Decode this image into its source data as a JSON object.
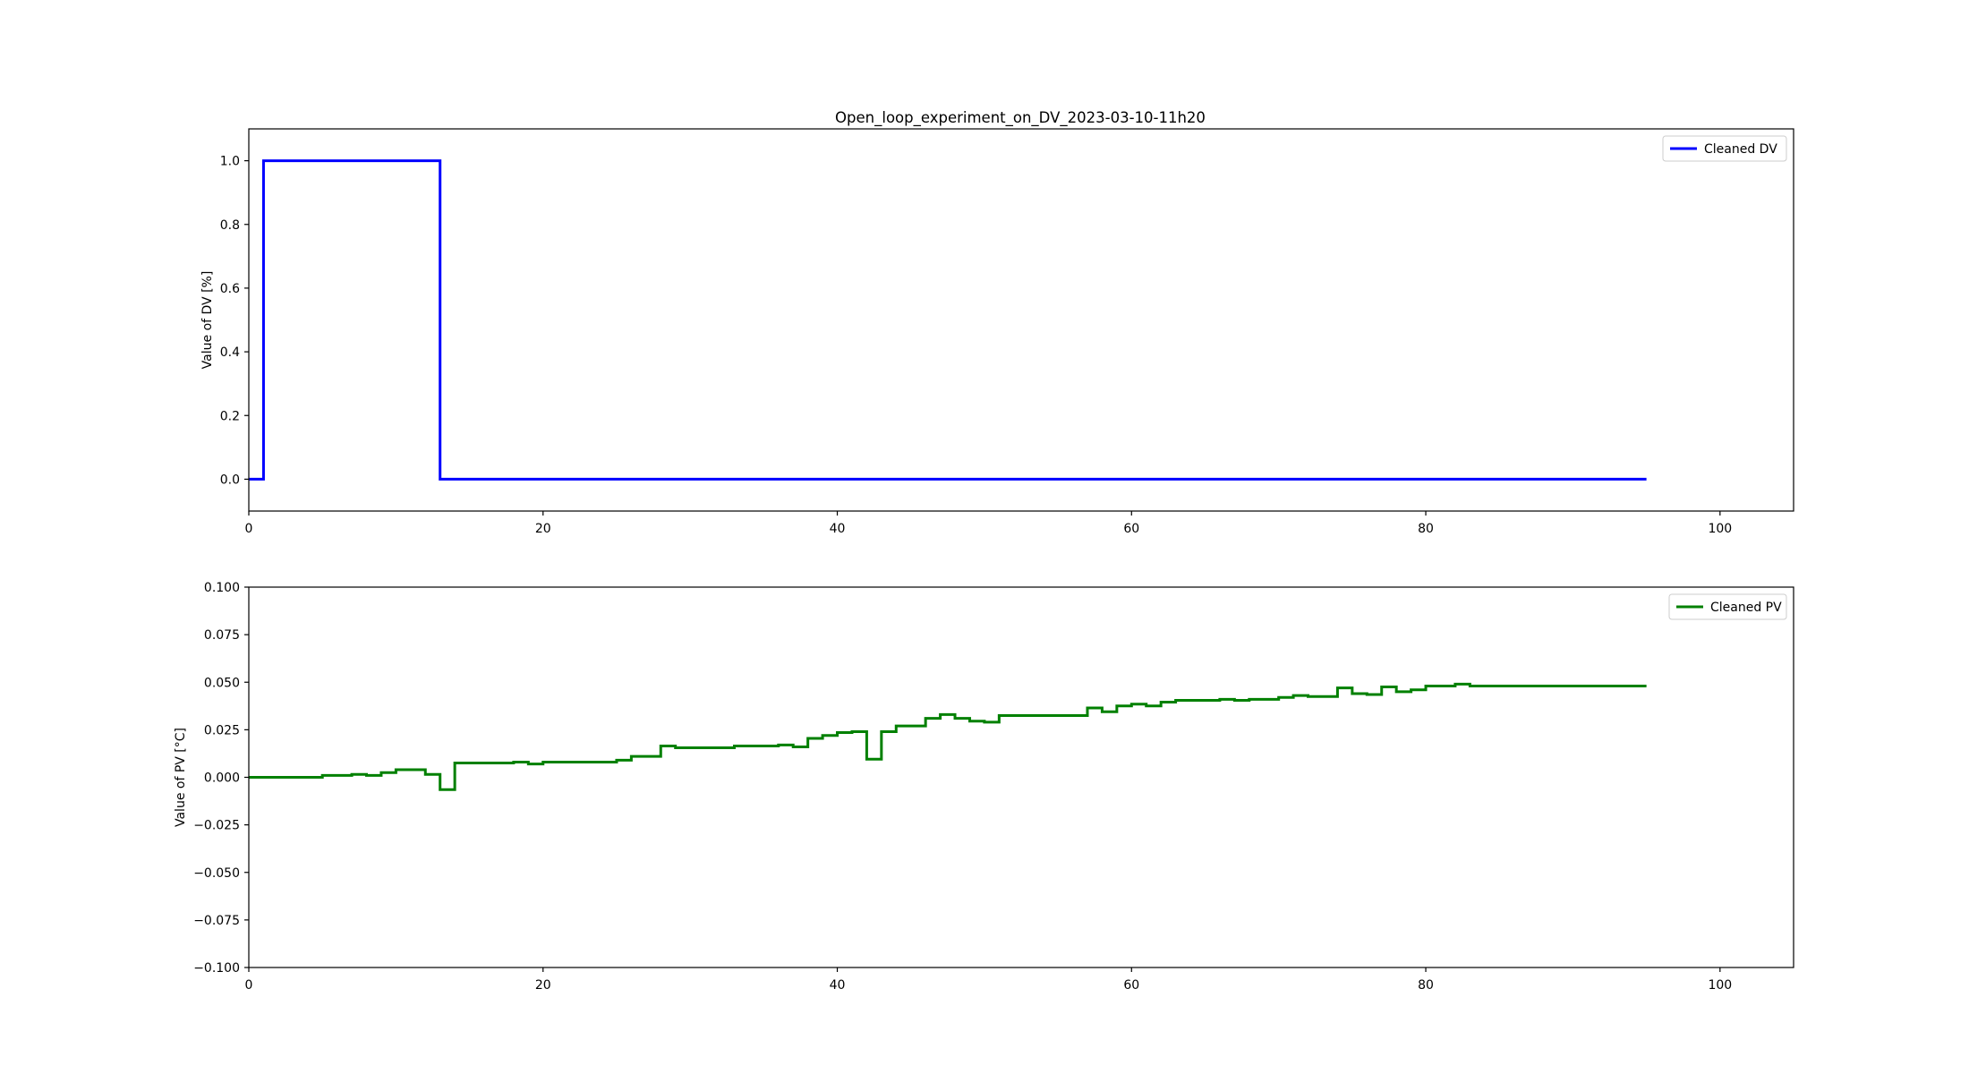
{
  "figure": {
    "title": "Open_loop_experiment_on_DV_2023-03-10-11h20"
  },
  "chart_data": [
    {
      "type": "line",
      "step": "post",
      "title": "Open_loop_experiment_on_DV_2023-03-10-11h20",
      "xlabel": "",
      "ylabel": "Value of DV [%]",
      "xlim": [
        0,
        105
      ],
      "ylim": [
        -0.1,
        1.1
      ],
      "xticks": [
        0,
        20,
        40,
        60,
        80,
        100
      ],
      "yticks": [
        0.0,
        0.2,
        0.4,
        0.6,
        0.8,
        1.0
      ],
      "xtick_labels": [
        "0",
        "20",
        "40",
        "60",
        "80",
        "100"
      ],
      "ytick_labels": [
        "0.0",
        "0.2",
        "0.4",
        "0.6",
        "0.8",
        "1.0"
      ],
      "grid": false,
      "legend": "top-right",
      "series": [
        {
          "name": "Cleaned DV",
          "color": "#0000ff",
          "x": [
            0,
            1,
            13,
            95
          ],
          "y": [
            0,
            1,
            0,
            0
          ]
        }
      ]
    },
    {
      "type": "line",
      "step": "post",
      "title": "",
      "xlabel": "",
      "ylabel": "Value of PV [°C]",
      "xlim": [
        0,
        105
      ],
      "ylim": [
        -0.1,
        0.1
      ],
      "xticks": [
        0,
        20,
        40,
        60,
        80,
        100
      ],
      "yticks": [
        -0.1,
        -0.075,
        -0.05,
        -0.025,
        0.0,
        0.025,
        0.05,
        0.075,
        0.1
      ],
      "xtick_labels": [
        "0",
        "20",
        "40",
        "60",
        "80",
        "100"
      ],
      "ytick_labels": [
        "−0.100",
        "−0.075",
        "−0.050",
        "−0.025",
        "0.000",
        "0.025",
        "0.050",
        "0.075",
        "0.100"
      ],
      "grid": false,
      "legend": "top-right",
      "series": [
        {
          "name": "Cleaned PV",
          "color": "#008000",
          "x": [
            0,
            5,
            7,
            8,
            9,
            10,
            12,
            13,
            14,
            18,
            19,
            20,
            25,
            26,
            28,
            29,
            33,
            36,
            37,
            38,
            39,
            40,
            41,
            42,
            43,
            44,
            46,
            47,
            48,
            49,
            50,
            51,
            57,
            58,
            59,
            60,
            61,
            62,
            63,
            66,
            67,
            68,
            70,
            71,
            72,
            74,
            75,
            76,
            77,
            78,
            79,
            80,
            82,
            83,
            95
          ],
          "y": [
            0,
            0.001,
            0.0015,
            0.001,
            0.0025,
            0.004,
            0.0015,
            -0.0065,
            0.0075,
            0.008,
            0.007,
            0.008,
            0.009,
            0.011,
            0.0165,
            0.0155,
            0.0165,
            0.017,
            0.016,
            0.0205,
            0.022,
            0.0235,
            0.024,
            0.0095,
            0.024,
            0.027,
            0.031,
            0.033,
            0.031,
            0.0295,
            0.029,
            0.0325,
            0.0365,
            0.0345,
            0.0375,
            0.0385,
            0.0375,
            0.0395,
            0.0405,
            0.041,
            0.0405,
            0.041,
            0.042,
            0.043,
            0.0425,
            0.047,
            0.044,
            0.0435,
            0.0475,
            0.045,
            0.046,
            0.048,
            0.049,
            0.048,
            0.048
          ]
        }
      ]
    }
  ]
}
